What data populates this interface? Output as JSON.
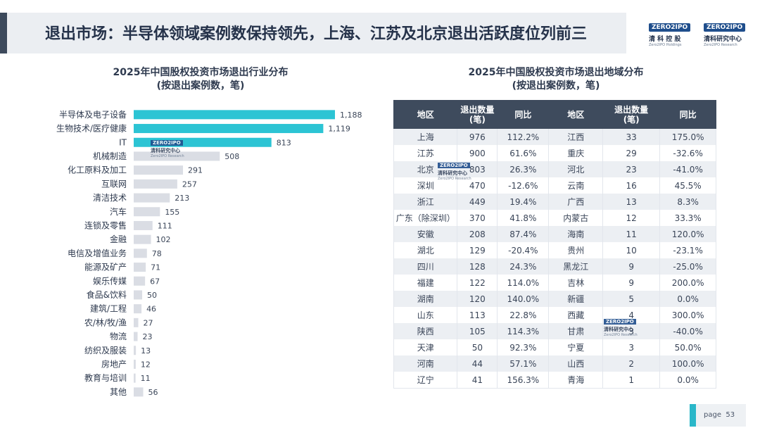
{
  "header": {
    "title": "退出市场：半导体领域案例数保持领先，上海、江苏及北京退出活跃度位列前三",
    "logos": [
      {
        "badge": "ZERO2IPO",
        "name": "清 科 控 股",
        "sub": "Zero2IPO Holdings"
      },
      {
        "badge": "ZERO2IPO",
        "name": "清科研究中心",
        "sub": "Zero2IPO Research"
      }
    ]
  },
  "watermark": {
    "badge": "ZERO2IPO",
    "name": "清科研究中心",
    "sub": "Zero2IPO Research"
  },
  "colors": {
    "accent": "#2cc4d4",
    "bar_gray": "#dadde4",
    "header_bg": "#3e4b5d",
    "title_bg": "#ebeef2"
  },
  "left_chart": {
    "title_line1": "2025年中国股权投资市场退出行业分布",
    "title_line2": "(按退出案例数，笔)"
  },
  "right_chart": {
    "title_line1": "2025年中国股权投资市场退出地域分布",
    "title_line2": "(按退出案例数，笔)"
  },
  "chart_data": {
    "type": "bar",
    "orientation": "horizontal",
    "title": "2025年中国股权投资市场退出行业分布 (按退出案例数，笔)",
    "categories": [
      "半导体及电子设备",
      "生物技术/医疗健康",
      "IT",
      "机械制造",
      "化工原料及加工",
      "互联网",
      "清洁技术",
      "汽车",
      "连锁及零售",
      "金融",
      "电信及增值业务",
      "能源及矿产",
      "娱乐传媒",
      "食品&饮料",
      "建筑/工程",
      "农/林/牧/渔",
      "物流",
      "纺织及服装",
      "房地产",
      "教育与培训",
      "其他"
    ],
    "values": [
      1188,
      1119,
      813,
      508,
      291,
      257,
      213,
      155,
      111,
      102,
      78,
      71,
      67,
      50,
      46,
      27,
      23,
      13,
      12,
      11,
      56
    ],
    "value_labels": [
      "1,188",
      "1,119",
      "813",
      "508",
      "291",
      "257",
      "213",
      "155",
      "111",
      "102",
      "78",
      "71",
      "67",
      "50",
      "46",
      "27",
      "23",
      "13",
      "12",
      "11",
      "56"
    ],
    "highlight_count": 3,
    "xlim": [
      0,
      1188
    ]
  },
  "table": {
    "headers": [
      "地区",
      "退出数量\n(笔)",
      "同比",
      "地区",
      "退出数量\n(笔)",
      "同比"
    ],
    "rows": [
      [
        "上海",
        "976",
        "112.2%",
        "江西",
        "33",
        "175.0%"
      ],
      [
        "江苏",
        "900",
        "61.6%",
        "重庆",
        "29",
        "-32.6%"
      ],
      [
        "北京",
        "803",
        "26.3%",
        "河北",
        "23",
        "-41.0%"
      ],
      [
        "深圳",
        "470",
        "-12.6%",
        "云南",
        "16",
        "45.5%"
      ],
      [
        "浙江",
        "449",
        "19.4%",
        "广西",
        "13",
        "8.3%"
      ],
      [
        "广东（除深圳）",
        "370",
        "41.8%",
        "内蒙古",
        "12",
        "33.3%"
      ],
      [
        "安徽",
        "208",
        "87.4%",
        "海南",
        "11",
        "120.0%"
      ],
      [
        "湖北",
        "129",
        "-20.4%",
        "贵州",
        "10",
        "-23.1%"
      ],
      [
        "四川",
        "128",
        "24.3%",
        "黑龙江",
        "9",
        "-25.0%"
      ],
      [
        "福建",
        "122",
        "114.0%",
        "吉林",
        "9",
        "200.0%"
      ],
      [
        "湖南",
        "120",
        "140.0%",
        "新疆",
        "5",
        "0.0%"
      ],
      [
        "山东",
        "113",
        "22.8%",
        "西藏",
        "4",
        "300.0%"
      ],
      [
        "陕西",
        "105",
        "114.3%",
        "甘肃",
        "3",
        "-40.0%"
      ],
      [
        "天津",
        "50",
        "92.3%",
        "宁夏",
        "3",
        "50.0%"
      ],
      [
        "河南",
        "44",
        "57.1%",
        "山西",
        "2",
        "100.0%"
      ],
      [
        "辽宁",
        "41",
        "156.3%",
        "青海",
        "1",
        "0.0%"
      ]
    ]
  },
  "footer": {
    "page_label": "page",
    "page_number": "53"
  }
}
